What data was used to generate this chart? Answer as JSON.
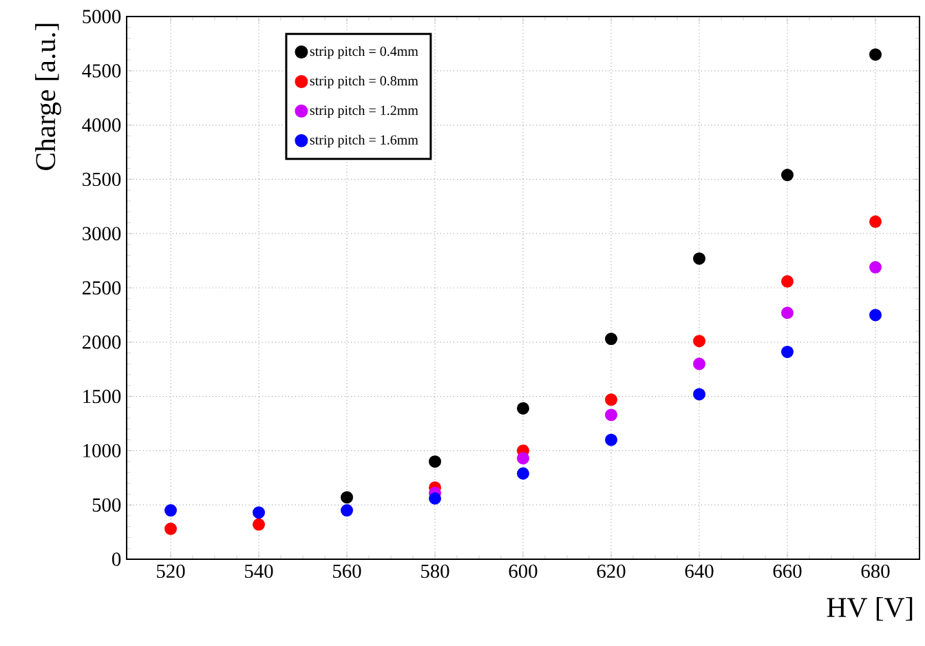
{
  "chart_data": {
    "type": "scatter",
    "xlabel": "HV [V]",
    "ylabel": "Charge [a.u.]",
    "x": [
      520,
      540,
      560,
      580,
      600,
      620,
      640,
      660,
      680
    ],
    "xlim": [
      510,
      690
    ],
    "xticks": [
      520,
      540,
      560,
      580,
      600,
      620,
      640,
      660,
      680
    ],
    "ylim": [
      0,
      5000
    ],
    "yticks": [
      0,
      500,
      1000,
      1500,
      2000,
      2500,
      3000,
      3500,
      4000,
      4500,
      5000
    ],
    "grid": true,
    "legend": "top left",
    "marker": "circle",
    "series": [
      {
        "name": "strip pitch = 0.4mm",
        "color": "#000000",
        "values": [
          null,
          null,
          570,
          900,
          1390,
          2030,
          2770,
          3540,
          4650
        ]
      },
      {
        "name": "strip pitch = 0.8mm",
        "color": "#ff0000",
        "values": [
          280,
          320,
          null,
          660,
          1000,
          1470,
          2010,
          2560,
          3110
        ]
      },
      {
        "name": "strip pitch = 1.2mm",
        "color": "#cc00ff",
        "values": [
          null,
          null,
          null,
          610,
          930,
          1330,
          1800,
          2270,
          2690
        ]
      },
      {
        "name": "strip pitch = 1.6mm",
        "color": "#0000ff",
        "values": [
          450,
          430,
          450,
          560,
          790,
          1100,
          1520,
          1910,
          2250
        ]
      }
    ]
  }
}
